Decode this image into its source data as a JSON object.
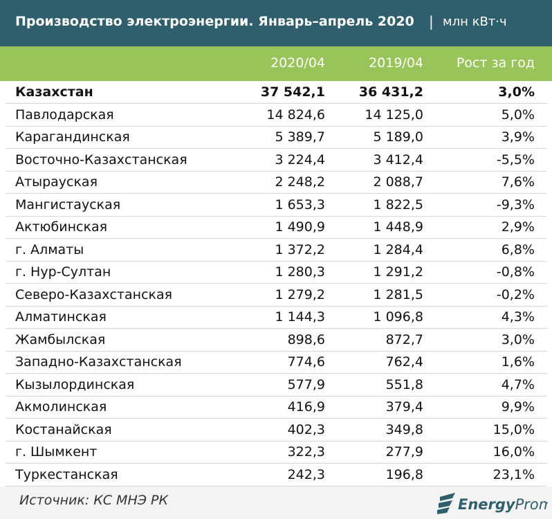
{
  "header": {
    "title": "Производство электроэнергии. Январь–апрель 2020",
    "separator": "|",
    "unit": "млн кВт·ч"
  },
  "table": {
    "columns": [
      "2020/04",
      "2019/04",
      "Рост за год"
    ],
    "rows": [
      [
        "Казахстан",
        "37 542,1",
        "36 431,2",
        "3,0%"
      ],
      [
        "Павлодарская",
        "14 824,6",
        "14 125,0",
        "5,0%"
      ],
      [
        "Карагандинская",
        "5 389,7",
        "5 189,0",
        "3,9%"
      ],
      [
        "Восточно-Казахстанская",
        "3 224,4",
        "3 412,4",
        "-5,5%"
      ],
      [
        "Атырауская",
        "2 248,2",
        "2 088,7",
        "7,6%"
      ],
      [
        "Мангистауская",
        "1 653,3",
        "1 822,5",
        "-9,3%"
      ],
      [
        "Актюбинская",
        "1 490,9",
        "1 448,9",
        "2,9%"
      ],
      [
        "г. Алматы",
        "1 372,2",
        "1 284,4",
        "6,8%"
      ],
      [
        "г. Нур-Султан",
        "1 280,3",
        "1 291,2",
        "-0,8%"
      ],
      [
        "Северо-Казахстанская",
        "1 279,2",
        "1 281,5",
        "-0,2%"
      ],
      [
        "Алматинская",
        "1 144,3",
        "1 096,8",
        "4,3%"
      ],
      [
        "Жамбылская",
        "898,6",
        "872,7",
        "3,0%"
      ],
      [
        "Западно-Казахстанская",
        "774,6",
        "762,4",
        "1,6%"
      ],
      [
        "Кызылординская",
        "577,9",
        "551,8",
        "4,7%"
      ],
      [
        "Акмолинская",
        "416,9",
        "379,4",
        "9,9%"
      ],
      [
        "Костанайская",
        "402,3",
        "349,8",
        "15,0%"
      ],
      [
        "г. Шымкент",
        "322,3",
        "277,9",
        "16,0%"
      ],
      [
        "Туркестанская",
        "242,3",
        "196,8",
        "23,1%"
      ]
    ]
  },
  "footer": {
    "source": "Источник: КС МНЭ РК",
    "logo_bold": "Energy",
    "logo_light": "Prom"
  }
}
